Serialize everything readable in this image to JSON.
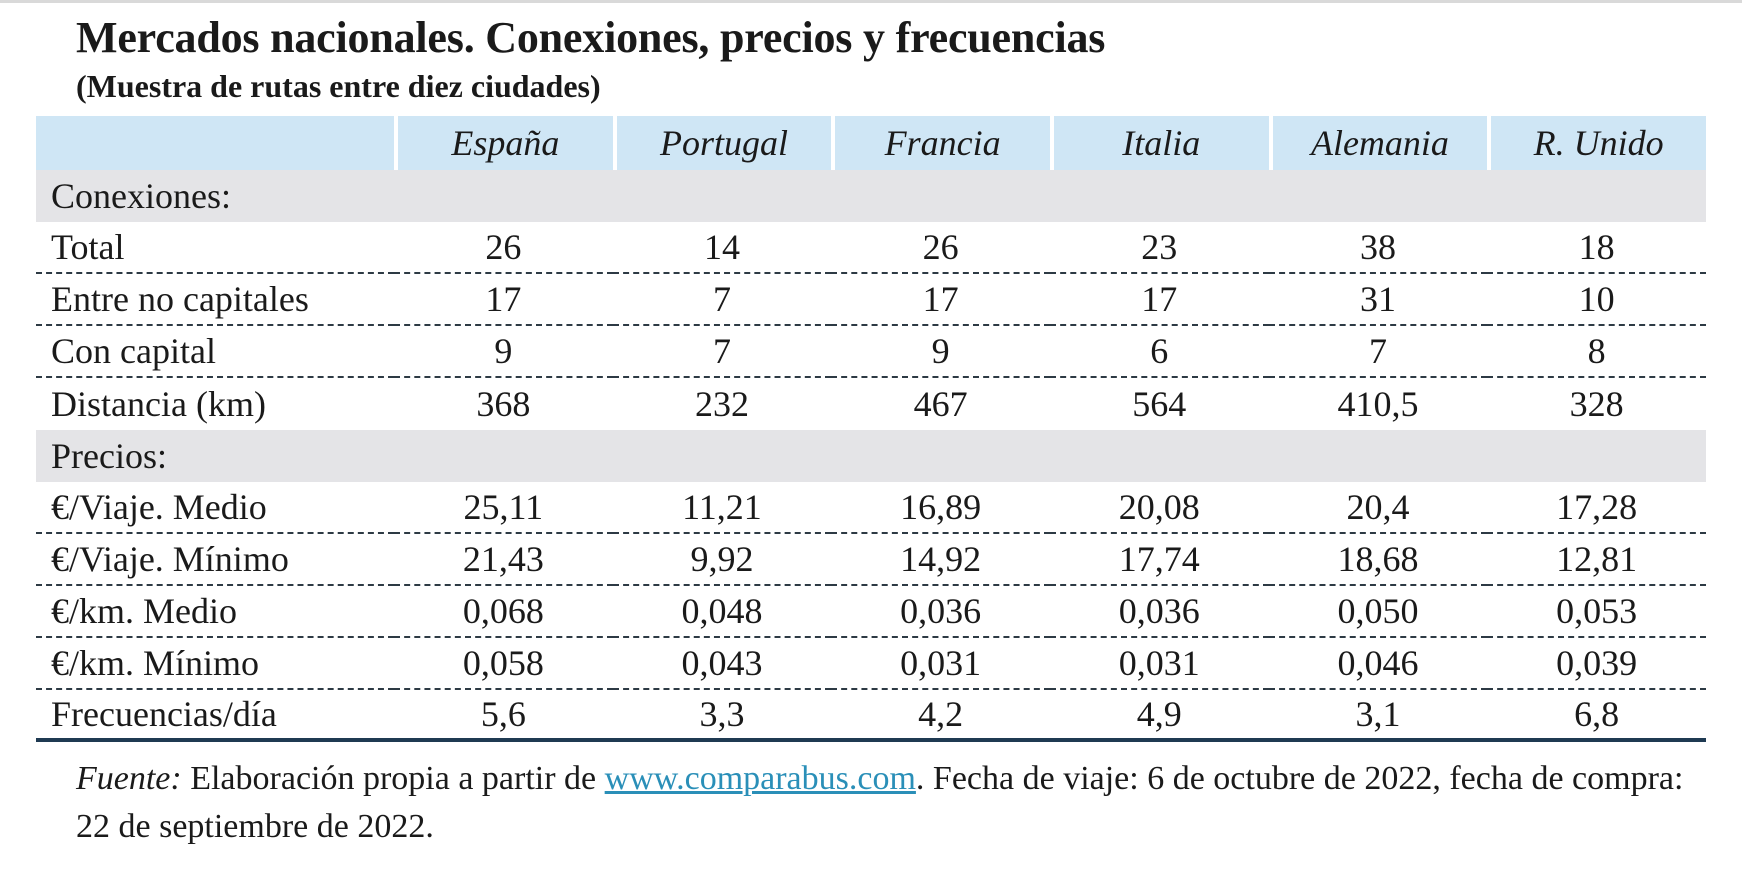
{
  "title": "Mercados nacionales. Conexiones, precios y frecuencias",
  "subtitle": "(Muestra de rutas entre diez ciudades)",
  "table": {
    "columns": [
      "España",
      "Portugal",
      "Francia",
      "Italia",
      "Alemania",
      "R. Unido"
    ],
    "sections": [
      {
        "heading": "Conexiones:",
        "rows": [
          {
            "label": "Total",
            "values": [
              "26",
              "14",
              "26",
              "23",
              "38",
              "18"
            ]
          },
          {
            "label": "Entre no capitales",
            "values": [
              "17",
              "7",
              "17",
              "17",
              "31",
              "10"
            ]
          },
          {
            "label": "Con capital",
            "values": [
              "9",
              "7",
              "9",
              "6",
              "7",
              "8"
            ]
          },
          {
            "label": "Distancia (km)",
            "values": [
              "368",
              "232",
              "467",
              "564",
              "410,5",
              "328"
            ]
          }
        ]
      },
      {
        "heading": "Precios:",
        "rows": [
          {
            "label": "€/Viaje. Medio",
            "values": [
              "25,11",
              "11,21",
              "16,89",
              "20,08",
              "20,4",
              "17,28"
            ]
          },
          {
            "label": "€/Viaje. Mínimo",
            "values": [
              "21,43",
              "9,92",
              "14,92",
              "17,74",
              "18,68",
              "12,81"
            ]
          },
          {
            "label": "€/km. Medio",
            "values": [
              "0,068",
              "0,048",
              "0,036",
              "0,036",
              "0,050",
              "0,053"
            ]
          },
          {
            "label": "€/km. Mínimo",
            "values": [
              "0,058",
              "0,043",
              "0,031",
              "0,031",
              "0,046",
              "0,039"
            ]
          },
          {
            "label": "Frecuencias/día",
            "values": [
              "5,6",
              "3,3",
              "4,2",
              "4,9",
              "3,1",
              "6,8"
            ]
          }
        ]
      }
    ]
  },
  "source": {
    "label": "Fuente:",
    "text_before": " Elaboración propia a partir de ",
    "link": "www.comparabus.com",
    "text_after": ". Fecha de viaje: 6 de octubre de 2022, fecha de compra: 22 de septiembre de 2022."
  },
  "colors": {
    "header_bg": "#cfe6f5",
    "section_bg": "#e4e4e7",
    "rule": "#1f3a52",
    "link": "#2a8fb8"
  }
}
